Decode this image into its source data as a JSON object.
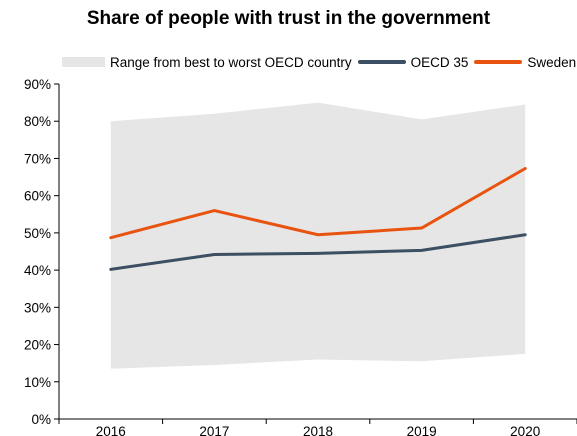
{
  "chart_data": {
    "type": "line",
    "title": "Share of people with trust in the government",
    "xlabel": "",
    "ylabel": "",
    "categories": [
      "2016",
      "2017",
      "2018",
      "2019",
      "2020"
    ],
    "ylim": [
      0,
      90
    ],
    "yticks": [
      "0%",
      "10%",
      "20%",
      "30%",
      "40%",
      "50%",
      "60%",
      "70%",
      "80%",
      "90%"
    ],
    "range": {
      "name": "Range from best to worst OECD country",
      "low": [
        13.5,
        14.5,
        16,
        15.5,
        17.5
      ],
      "high": [
        80,
        82,
        85,
        80.5,
        84.5
      ],
      "color": "#e6e6e6"
    },
    "series": [
      {
        "name": "OECD 35",
        "values": [
          40.2,
          44.2,
          44.5,
          45.3,
          49.5
        ],
        "color": "#3d4f63"
      },
      {
        "name": "Sweden",
        "values": [
          48.7,
          56,
          49.5,
          51.3,
          67.3
        ],
        "color": "#e8540f"
      }
    ],
    "grid": false,
    "legend_position": "top"
  }
}
